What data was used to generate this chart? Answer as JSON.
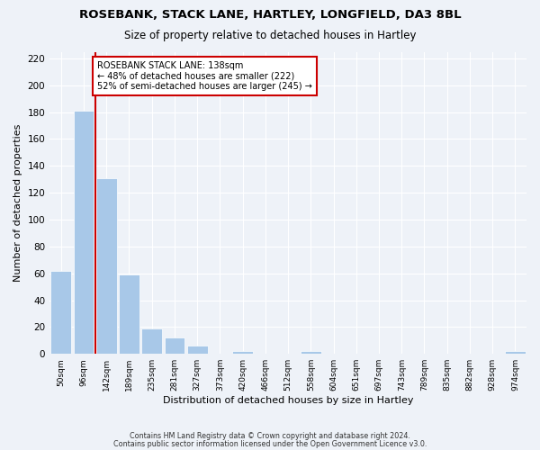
{
  "title": "ROSEBANK, STACK LANE, HARTLEY, LONGFIELD, DA3 8BL",
  "subtitle": "Size of property relative to detached houses in Hartley",
  "xlabel": "Distribution of detached houses by size in Hartley",
  "ylabel": "Number of detached properties",
  "bar_color": "#a8c8e8",
  "vline_color": "#cc0000",
  "annotation_title": "ROSEBANK STACK LANE: 138sqm",
  "annotation_line1": "← 48% of detached houses are smaller (222)",
  "annotation_line2": "52% of semi-detached houses are larger (245) →",
  "bin_labels": [
    "50sqm",
    "96sqm",
    "142sqm",
    "189sqm",
    "235sqm",
    "281sqm",
    "327sqm",
    "373sqm",
    "420sqm",
    "466sqm",
    "512sqm",
    "558sqm",
    "604sqm",
    "651sqm",
    "697sqm",
    "743sqm",
    "789sqm",
    "835sqm",
    "882sqm",
    "928sqm",
    "974sqm"
  ],
  "bar_heights": [
    62,
    181,
    131,
    59,
    19,
    12,
    6,
    0,
    2,
    0,
    0,
    2,
    0,
    0,
    0,
    0,
    0,
    0,
    0,
    0,
    2
  ],
  "ylim": [
    0,
    225
  ],
  "yticks": [
    0,
    20,
    40,
    60,
    80,
    100,
    120,
    140,
    160,
    180,
    200,
    220
  ],
  "footer_line1": "Contains HM Land Registry data © Crown copyright and database right 2024.",
  "footer_line2": "Contains public sector information licensed under the Open Government Licence v3.0.",
  "background_color": "#eef2f8"
}
